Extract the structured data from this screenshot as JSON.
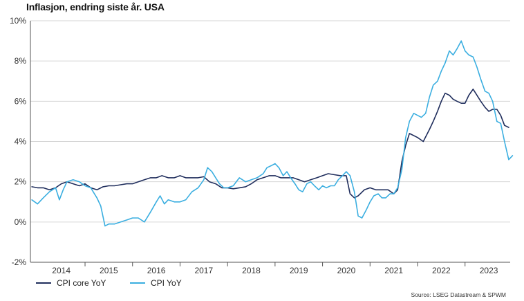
{
  "chart_data": {
    "type": "line",
    "title": "Inflasjon, endring siste år. USA",
    "source": "Source: LSEG Datastream & SPWM",
    "xlabel": "",
    "ylabel": "",
    "xlim": [
      2013.35,
      2023.45
    ],
    "ylim": [
      -2,
      10
    ],
    "grid": true,
    "legend_position": "bottom-left",
    "y_ticks": [
      {
        "value": 10,
        "label": "10%"
      },
      {
        "value": 8,
        "label": "8%"
      },
      {
        "value": 6,
        "label": "6%"
      },
      {
        "value": 4,
        "label": "4%"
      },
      {
        "value": 2,
        "label": "2%"
      },
      {
        "value": 0,
        "label": "0%"
      },
      {
        "value": -2,
        "label": "-2%"
      }
    ],
    "x_ticks": [
      {
        "value": 2014,
        "label": "2014"
      },
      {
        "value": 2015,
        "label": "2015"
      },
      {
        "value": 2016,
        "label": "2016"
      },
      {
        "value": 2017,
        "label": "2017"
      },
      {
        "value": 2018,
        "label": "2018"
      },
      {
        "value": 2019,
        "label": "2019"
      },
      {
        "value": 2020,
        "label": "2020"
      },
      {
        "value": 2021,
        "label": "2021"
      },
      {
        "value": 2022,
        "label": "2022"
      },
      {
        "value": 2023,
        "label": "2023"
      }
    ],
    "series": [
      {
        "name": "CPI core YoY",
        "color": "#1f2d5c",
        "points": [
          [
            2013.38,
            1.75
          ],
          [
            2013.5,
            1.7
          ],
          [
            2013.62,
            1.7
          ],
          [
            2013.75,
            1.6
          ],
          [
            2013.88,
            1.7
          ],
          [
            2014.0,
            1.9
          ],
          [
            2014.12,
            2.0
          ],
          [
            2014.25,
            1.9
          ],
          [
            2014.38,
            1.8
          ],
          [
            2014.5,
            1.9
          ],
          [
            2014.62,
            1.7
          ],
          [
            2014.75,
            1.6
          ],
          [
            2014.88,
            1.75
          ],
          [
            2015.0,
            1.8
          ],
          [
            2015.12,
            1.8
          ],
          [
            2015.25,
            1.85
          ],
          [
            2015.38,
            1.9
          ],
          [
            2015.5,
            1.9
          ],
          [
            2015.62,
            2.0
          ],
          [
            2015.75,
            2.1
          ],
          [
            2015.88,
            2.2
          ],
          [
            2016.0,
            2.2
          ],
          [
            2016.12,
            2.3
          ],
          [
            2016.25,
            2.2
          ],
          [
            2016.38,
            2.2
          ],
          [
            2016.5,
            2.3
          ],
          [
            2016.62,
            2.2
          ],
          [
            2016.75,
            2.2
          ],
          [
            2016.88,
            2.2
          ],
          [
            2017.0,
            2.25
          ],
          [
            2017.12,
            2.0
          ],
          [
            2017.25,
            1.9
          ],
          [
            2017.38,
            1.7
          ],
          [
            2017.5,
            1.7
          ],
          [
            2017.62,
            1.65
          ],
          [
            2017.75,
            1.7
          ],
          [
            2017.88,
            1.75
          ],
          [
            2018.0,
            1.9
          ],
          [
            2018.12,
            2.1
          ],
          [
            2018.25,
            2.2
          ],
          [
            2018.38,
            2.3
          ],
          [
            2018.5,
            2.3
          ],
          [
            2018.62,
            2.2
          ],
          [
            2018.75,
            2.2
          ],
          [
            2018.88,
            2.2
          ],
          [
            2019.0,
            2.1
          ],
          [
            2019.12,
            2.0
          ],
          [
            2019.25,
            2.1
          ],
          [
            2019.38,
            2.2
          ],
          [
            2019.5,
            2.3
          ],
          [
            2019.62,
            2.4
          ],
          [
            2019.75,
            2.35
          ],
          [
            2019.88,
            2.3
          ],
          [
            2020.0,
            2.3
          ],
          [
            2020.08,
            1.4
          ],
          [
            2020.17,
            1.2
          ],
          [
            2020.25,
            1.3
          ],
          [
            2020.38,
            1.6
          ],
          [
            2020.5,
            1.7
          ],
          [
            2020.62,
            1.6
          ],
          [
            2020.75,
            1.6
          ],
          [
            2020.88,
            1.6
          ],
          [
            2021.0,
            1.4
          ],
          [
            2021.08,
            1.6
          ],
          [
            2021.17,
            3.0
          ],
          [
            2021.25,
            3.8
          ],
          [
            2021.33,
            4.4
          ],
          [
            2021.5,
            4.2
          ],
          [
            2021.62,
            4.0
          ],
          [
            2021.75,
            4.6
          ],
          [
            2021.83,
            5.0
          ],
          [
            2021.92,
            5.5
          ],
          [
            2022.0,
            6.0
          ],
          [
            2022.08,
            6.4
          ],
          [
            2022.17,
            6.3
          ],
          [
            2022.25,
            6.1
          ],
          [
            2022.33,
            6.0
          ],
          [
            2022.42,
            5.9
          ],
          [
            2022.5,
            5.9
          ],
          [
            2022.58,
            6.3
          ],
          [
            2022.67,
            6.6
          ],
          [
            2022.75,
            6.3
          ],
          [
            2022.83,
            6.0
          ],
          [
            2022.92,
            5.7
          ],
          [
            2023.0,
            5.5
          ],
          [
            2023.08,
            5.6
          ],
          [
            2023.17,
            5.6
          ],
          [
            2023.25,
            5.3
          ],
          [
            2023.33,
            4.8
          ],
          [
            2023.42,
            4.7
          ]
        ]
      },
      {
        "name": "CPI YoY",
        "color": "#3aaee0",
        "points": [
          [
            2013.38,
            1.1
          ],
          [
            2013.5,
            0.9
          ],
          [
            2013.62,
            1.2
          ],
          [
            2013.75,
            1.5
          ],
          [
            2013.88,
            1.7
          ],
          [
            2013.96,
            1.1
          ],
          [
            2014.04,
            1.6
          ],
          [
            2014.12,
            2.0
          ],
          [
            2014.25,
            2.1
          ],
          [
            2014.38,
            2.0
          ],
          [
            2014.5,
            1.8
          ],
          [
            2014.62,
            1.7
          ],
          [
            2014.75,
            1.2
          ],
          [
            2014.83,
            0.8
          ],
          [
            2014.92,
            -0.2
          ],
          [
            2015.0,
            -0.1
          ],
          [
            2015.12,
            -0.1
          ],
          [
            2015.25,
            0.0
          ],
          [
            2015.38,
            0.1
          ],
          [
            2015.5,
            0.2
          ],
          [
            2015.62,
            0.2
          ],
          [
            2015.75,
            0.0
          ],
          [
            2015.88,
            0.5
          ],
          [
            2016.0,
            1.0
          ],
          [
            2016.08,
            1.3
          ],
          [
            2016.17,
            0.9
          ],
          [
            2016.25,
            1.1
          ],
          [
            2016.38,
            1.0
          ],
          [
            2016.5,
            1.0
          ],
          [
            2016.62,
            1.1
          ],
          [
            2016.75,
            1.5
          ],
          [
            2016.88,
            1.7
          ],
          [
            2017.0,
            2.1
          ],
          [
            2017.08,
            2.7
          ],
          [
            2017.17,
            2.5
          ],
          [
            2017.25,
            2.2
          ],
          [
            2017.33,
            1.9
          ],
          [
            2017.42,
            1.7
          ],
          [
            2017.5,
            1.7
          ],
          [
            2017.62,
            1.8
          ],
          [
            2017.75,
            2.2
          ],
          [
            2017.88,
            2.0
          ],
          [
            2018.0,
            2.1
          ],
          [
            2018.12,
            2.2
          ],
          [
            2018.25,
            2.4
          ],
          [
            2018.33,
            2.7
          ],
          [
            2018.42,
            2.8
          ],
          [
            2018.5,
            2.9
          ],
          [
            2018.58,
            2.7
          ],
          [
            2018.67,
            2.3
          ],
          [
            2018.75,
            2.5
          ],
          [
            2018.83,
            2.2
          ],
          [
            2018.92,
            1.9
          ],
          [
            2019.0,
            1.6
          ],
          [
            2019.08,
            1.5
          ],
          [
            2019.17,
            1.9
          ],
          [
            2019.25,
            2.0
          ],
          [
            2019.33,
            1.8
          ],
          [
            2019.42,
            1.6
          ],
          [
            2019.5,
            1.8
          ],
          [
            2019.58,
            1.7
          ],
          [
            2019.67,
            1.8
          ],
          [
            2019.75,
            1.8
          ],
          [
            2019.83,
            2.1
          ],
          [
            2019.92,
            2.3
          ],
          [
            2020.0,
            2.5
          ],
          [
            2020.08,
            2.3
          ],
          [
            2020.17,
            1.5
          ],
          [
            2020.25,
            0.3
          ],
          [
            2020.33,
            0.2
          ],
          [
            2020.42,
            0.6
          ],
          [
            2020.5,
            1.0
          ],
          [
            2020.58,
            1.3
          ],
          [
            2020.67,
            1.4
          ],
          [
            2020.75,
            1.2
          ],
          [
            2020.83,
            1.2
          ],
          [
            2020.92,
            1.4
          ],
          [
            2021.0,
            1.4
          ],
          [
            2021.08,
            1.7
          ],
          [
            2021.17,
            2.6
          ],
          [
            2021.25,
            4.2
          ],
          [
            2021.33,
            5.0
          ],
          [
            2021.42,
            5.4
          ],
          [
            2021.5,
            5.3
          ],
          [
            2021.58,
            5.2
          ],
          [
            2021.67,
            5.4
          ],
          [
            2021.75,
            6.2
          ],
          [
            2021.83,
            6.8
          ],
          [
            2021.92,
            7.0
          ],
          [
            2022.0,
            7.5
          ],
          [
            2022.08,
            7.9
          ],
          [
            2022.17,
            8.5
          ],
          [
            2022.25,
            8.3
          ],
          [
            2022.33,
            8.6
          ],
          [
            2022.42,
            9.0
          ],
          [
            2022.5,
            8.5
          ],
          [
            2022.58,
            8.3
          ],
          [
            2022.67,
            8.2
          ],
          [
            2022.75,
            7.7
          ],
          [
            2022.83,
            7.1
          ],
          [
            2022.92,
            6.5
          ],
          [
            2023.0,
            6.4
          ],
          [
            2023.08,
            6.0
          ],
          [
            2023.17,
            5.0
          ],
          [
            2023.25,
            4.9
          ],
          [
            2023.33,
            4.0
          ],
          [
            2023.42,
            3.1
          ],
          [
            2023.5,
            3.3
          ]
        ]
      }
    ]
  }
}
